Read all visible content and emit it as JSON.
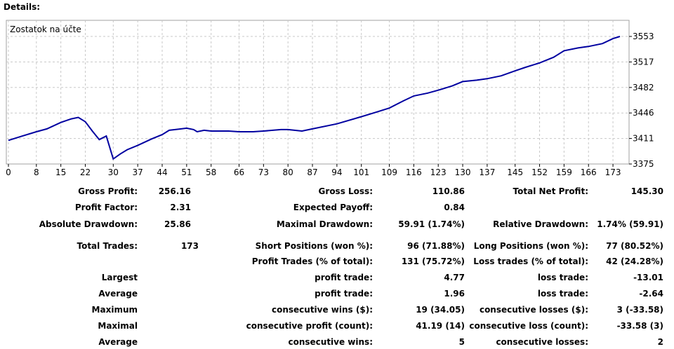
{
  "header": {
    "title": "Details:"
  },
  "chart_data": {
    "type": "line",
    "series": [
      {
        "name": "Zostatok na účte",
        "color": "#0000a0",
        "x": [
          0,
          4,
          8,
          11,
          15,
          18,
          20,
          22,
          24,
          26,
          28,
          30,
          32,
          34,
          37,
          41,
          44,
          46,
          51,
          53,
          54,
          56,
          58,
          63,
          66,
          70,
          73,
          78,
          80,
          84,
          87,
          94,
          101,
          105,
          109,
          113,
          116,
          120,
          123,
          127,
          130,
          134,
          137,
          141,
          145,
          148,
          152,
          156,
          159,
          163,
          166,
          170,
          173,
          175
        ],
        "values": [
          3408,
          3414,
          3420,
          3424,
          3433,
          3438,
          3440,
          3434,
          3421,
          3409,
          3414,
          3382,
          3389,
          3395,
          3401,
          3410,
          3416,
          3422,
          3425,
          3423,
          3420,
          3422,
          3421,
          3421,
          3420,
          3420,
          3421,
          3423,
          3423,
          3421,
          3424,
          3431,
          3441,
          3447,
          3453,
          3463,
          3470,
          3474,
          3478,
          3484,
          3490,
          3492,
          3494,
          3498,
          3505,
          3510,
          3516,
          3524,
          3533,
          3537,
          3539,
          3543,
          3550,
          3553
        ]
      }
    ],
    "x_ticks": [
      "0",
      "8",
      "15",
      "22",
      "30",
      "37",
      "44",
      "51",
      "58",
      "66",
      "73",
      "80",
      "87",
      "94",
      "101",
      "109",
      "116",
      "123",
      "130",
      "137",
      "145",
      "152",
      "159",
      "166",
      "173"
    ],
    "y_ticks": [
      "3553",
      "3517",
      "3482",
      "3446",
      "3411",
      "3375"
    ],
    "xlim": [
      0,
      176
    ],
    "ylim": [
      3375,
      3553
    ],
    "grid": true
  },
  "stats": {
    "gross_profit": {
      "label": "Gross Profit:",
      "value": "256.16"
    },
    "gross_loss": {
      "label": "Gross Loss:",
      "value": "110.86"
    },
    "total_net_profit": {
      "label": "Total Net Profit:",
      "value": "145.30"
    },
    "profit_factor": {
      "label": "Profit Factor:",
      "value": "2.31"
    },
    "expected_payoff": {
      "label": "Expected Payoff:",
      "value": "0.84"
    },
    "absolute_drawdown": {
      "label": "Absolute Drawdown:",
      "value": "25.86"
    },
    "maximal_drawdown": {
      "label": "Maximal Drawdown:",
      "value": "59.91 (1.74%)"
    },
    "relative_drawdown": {
      "label": "Relative Drawdown:",
      "value": "1.74% (59.91)"
    },
    "total_trades": {
      "label": "Total Trades:",
      "value": "173"
    },
    "short_positions": {
      "label": "Short Positions (won %):",
      "value": "96 (71.88%)"
    },
    "long_positions": {
      "label": "Long Positions (won %):",
      "value": "77 (80.52%)"
    },
    "profit_trades": {
      "label": "Profit Trades (% of total):",
      "value": "131 (75.72%)"
    },
    "loss_trades": {
      "label": "Loss trades (% of total):",
      "value": "42 (24.28%)"
    },
    "largest": {
      "label": "Largest",
      "profit_label": "profit trade:",
      "profit_value": "4.77",
      "loss_label": "loss trade:",
      "loss_value": "-13.01"
    },
    "average": {
      "label": "Average",
      "profit_label": "profit trade:",
      "profit_value": "1.96",
      "loss_label": "loss trade:",
      "loss_value": "-2.64"
    },
    "maximum": {
      "label": "Maximum",
      "wins_label": "consecutive wins ($):",
      "wins_value": "19 (34.05)",
      "losses_label": "consecutive losses ($):",
      "losses_value": "3 (-33.58)"
    },
    "maximal": {
      "label": "Maximal",
      "profit_label": "consecutive profit (count):",
      "profit_value": "41.19 (14)",
      "loss_label": "consecutive loss (count):",
      "loss_value": "-33.58 (3)"
    },
    "average_consec": {
      "label": "Average",
      "wins_label": "consecutive wins:",
      "wins_value": "5",
      "losses_label": "consecutive losses:",
      "losses_value": "2"
    }
  }
}
